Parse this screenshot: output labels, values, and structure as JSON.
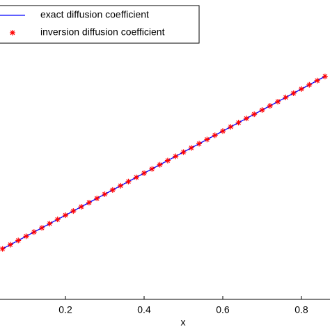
{
  "chart_data": {
    "type": "line",
    "x_label": "x",
    "x": [
      0.04,
      0.06,
      0.08,
      0.1,
      0.12,
      0.14,
      0.16,
      0.18,
      0.2,
      0.22,
      0.24,
      0.26,
      0.28,
      0.3,
      0.32,
      0.34,
      0.36,
      0.38,
      0.4,
      0.42,
      0.44,
      0.46,
      0.48,
      0.5,
      0.52,
      0.54,
      0.56,
      0.58,
      0.6,
      0.62,
      0.64,
      0.66,
      0.68,
      0.7,
      0.72,
      0.74,
      0.76,
      0.78,
      0.8,
      0.82,
      0.84,
      0.86
    ],
    "series": [
      {
        "name": "exact diffusion coefficient",
        "color": "#0000ff",
        "marker": "none",
        "values": [
          1.04,
          1.06,
          1.08,
          1.1,
          1.12,
          1.14,
          1.16,
          1.18,
          1.2,
          1.22,
          1.24,
          1.26,
          1.28,
          1.3,
          1.32,
          1.34,
          1.36,
          1.38,
          1.4,
          1.42,
          1.44,
          1.46,
          1.48,
          1.5,
          1.52,
          1.54,
          1.56,
          1.58,
          1.6,
          1.62,
          1.64,
          1.66,
          1.68,
          1.7,
          1.72,
          1.74,
          1.76,
          1.78,
          1.8,
          1.82,
          1.84,
          1.86
        ]
      },
      {
        "name": "inversion diffusion coefficient",
        "color": "#ff0000",
        "marker": "star",
        "values": [
          1.04,
          1.06,
          1.08,
          1.1,
          1.12,
          1.14,
          1.16,
          1.18,
          1.2,
          1.22,
          1.24,
          1.26,
          1.28,
          1.3,
          1.32,
          1.34,
          1.36,
          1.38,
          1.4,
          1.42,
          1.44,
          1.46,
          1.48,
          1.5,
          1.52,
          1.54,
          1.56,
          1.58,
          1.6,
          1.62,
          1.64,
          1.66,
          1.68,
          1.7,
          1.72,
          1.74,
          1.76,
          1.78,
          1.8,
          1.82,
          1.84,
          1.86
        ]
      }
    ],
    "xlim": [
      0.0336,
      0.8726
    ],
    "xticks": [
      0.2,
      0.4,
      0.6,
      0.8
    ],
    "ylim": [
      0.8,
      2.19
    ],
    "legend": "upper left"
  }
}
